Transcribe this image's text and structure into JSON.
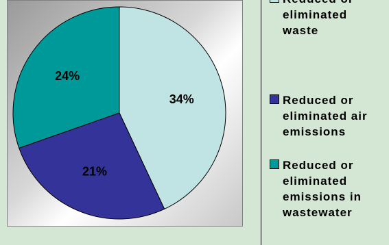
{
  "chart_data": {
    "type": "pie",
    "slices": [
      {
        "name": "Reduced or eliminated waste",
        "value": 34,
        "label": "34%",
        "color": "#c0e4e4"
      },
      {
        "name": "Reduced or eliminated air emissions",
        "value": 21,
        "label": "21%",
        "color": "#333399"
      },
      {
        "name": "Reduced or eliminated emissions in wastewater",
        "value": 24,
        "label": "24%",
        "color": "#009999"
      }
    ],
    "legend_position": "right",
    "start_angle_deg": 0,
    "direction": "clockwise"
  },
  "legend": {
    "items": [
      {
        "label": "Reduced or\neliminated\nwaste",
        "color": "#c0e4e4"
      },
      {
        "label": "Reduced or\neliminated air\nemissions",
        "color": "#333399"
      },
      {
        "label": "Reduced or\neliminated\nemissions in\nwastewater",
        "color": "#009999"
      }
    ]
  },
  "colors": {
    "background": "#d4e6d4",
    "slice_border": "#000000"
  }
}
